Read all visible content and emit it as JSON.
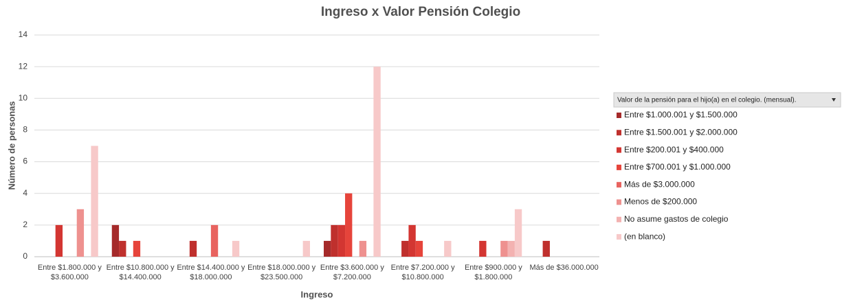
{
  "chart_data": {
    "type": "bar",
    "title": "Ingreso x Valor Pensión Colegio",
    "x_label": "Ingreso",
    "y_label": "Número de personas",
    "legend_title": "Valor de la pensión para el hijo(a) en el colegio. (mensual).",
    "legend_position": "right",
    "grid": true,
    "categories": [
      "Entre $1.800.000 y $3.600.000",
      "Entre $10.800.000 y $14.400.000",
      "Entre $14.400.000 y $18.000.000",
      "Entre $18.000.000 y $23.500.000",
      "Entre $3.600.000 y $7.200.000",
      "Entre $7.200.000 y $10.800.000",
      "Entre $900.000 y $1.800.000",
      "Más de $36.000.000"
    ],
    "ylim": [
      0,
      14
    ],
    "yticks": [
      0,
      2,
      4,
      6,
      8,
      10,
      12,
      14
    ],
    "series": [
      {
        "name": "Entre $1.000.001 y $1.500.000",
        "color": "#a52a2a",
        "values": [
          null,
          2,
          null,
          null,
          1,
          null,
          null,
          null
        ]
      },
      {
        "name": "Entre $1.500.001 y $2.000.000",
        "color": "#bf302d",
        "values": [
          null,
          1,
          1,
          null,
          2,
          1,
          null,
          1
        ]
      },
      {
        "name": "Entre $200.001 y $400.000",
        "color": "#d33632",
        "values": [
          2,
          null,
          null,
          null,
          2,
          2,
          1,
          null
        ]
      },
      {
        "name": "Entre $700.001 y $1.000.000",
        "color": "#e6443b",
        "values": [
          null,
          1,
          null,
          null,
          4,
          1,
          null,
          null
        ]
      },
      {
        "name": "Más de $3.000.000",
        "color": "#e8635f",
        "values": [
          null,
          null,
          2,
          null,
          null,
          null,
          null,
          null
        ]
      },
      {
        "name": "Menos de $200.000",
        "color": "#ee918f",
        "values": [
          3,
          null,
          null,
          null,
          1,
          null,
          1,
          null
        ]
      },
      {
        "name": "No asume gastos de colegio",
        "color": "#f3b2b1",
        "values": [
          null,
          null,
          null,
          null,
          null,
          null,
          1,
          null
        ]
      },
      {
        "name": "(en blanco)",
        "color": "#f7c9c9",
        "values": [
          7,
          null,
          1,
          1,
          12,
          1,
          3,
          null
        ]
      }
    ]
  }
}
